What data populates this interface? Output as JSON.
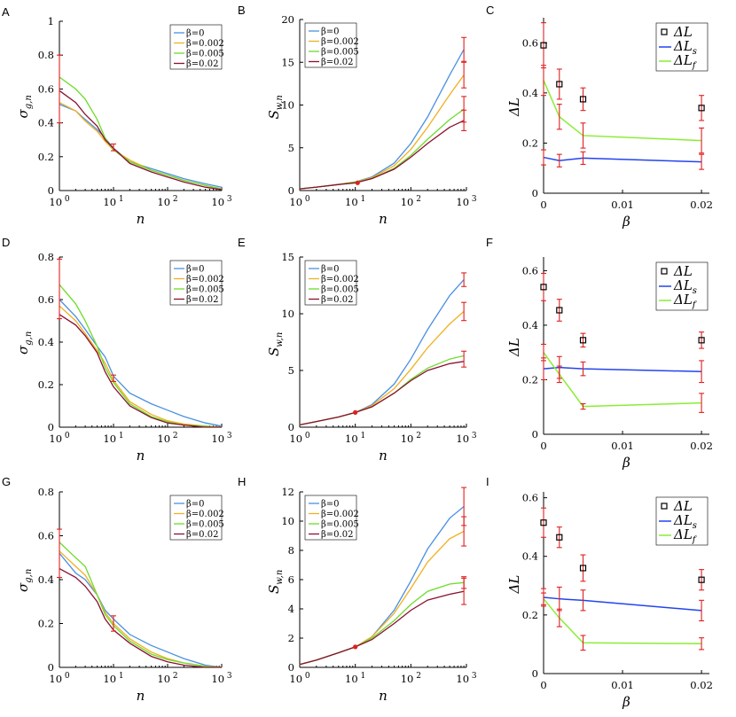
{
  "figure": {
    "legend_labels_sigma": [
      "β=0",
      "β=0.002",
      "β=0.005",
      "β=0.02"
    ],
    "legend_labels_dl": [
      "ΔL",
      "ΔLs",
      "ΔLf"
    ],
    "colors": {
      "b0": "#4a90e2",
      "b002": "#f0b020",
      "b005": "#6cdc2a",
      "b02": "#8b1030",
      "dLs": "#2244ee",
      "dLf": "#88ee33",
      "err": "#e02020"
    }
  },
  "chart_data": [
    {
      "panel": "A",
      "type": "line",
      "xscale": "log",
      "xlabel": "n",
      "ylabel": "σg,n",
      "xlim": [
        1,
        1000
      ],
      "ylim": [
        0,
        1
      ],
      "yticks": [
        "0",
        "0.2",
        "0.4",
        "0.6",
        "0.8",
        "1"
      ],
      "xticks": [
        "10⁰",
        "10¹",
        "10²",
        "10³"
      ],
      "x": [
        1,
        2,
        3,
        5,
        7,
        10,
        20,
        50,
        100,
        200,
        500,
        1000
      ],
      "series": [
        {
          "name": "β=0",
          "values": [
            0.51,
            0.47,
            0.42,
            0.36,
            0.31,
            0.25,
            0.17,
            0.13,
            0.1,
            0.07,
            0.04,
            0.02
          ]
        },
        {
          "name": "β=0.002",
          "values": [
            0.52,
            0.47,
            0.41,
            0.35,
            0.29,
            0.24,
            0.18,
            0.12,
            0.09,
            0.06,
            0.03,
            0.01
          ]
        },
        {
          "name": "β=0.005",
          "values": [
            0.67,
            0.6,
            0.54,
            0.42,
            0.31,
            0.24,
            0.17,
            0.12,
            0.09,
            0.06,
            0.03,
            0.01
          ]
        },
        {
          "name": "β=0.02",
          "values": [
            0.59,
            0.52,
            0.45,
            0.38,
            0.3,
            0.25,
            0.16,
            0.11,
            0.08,
            0.05,
            0.02,
            0.005
          ]
        }
      ],
      "errorbars": [
        {
          "x": 1,
          "y": 0.6,
          "err": 0.2
        },
        {
          "x": 10,
          "y": 0.255,
          "err": 0.02
        }
      ]
    },
    {
      "panel": "B",
      "type": "line",
      "xscale": "log",
      "xlabel": "n",
      "ylabel": "Sw,n",
      "xlim": [
        1,
        1000
      ],
      "ylim": [
        0,
        20
      ],
      "yticks": [
        "0",
        "5",
        "10",
        "15",
        "20"
      ],
      "xticks": [
        "10⁰",
        "10¹",
        "10²",
        "10³"
      ],
      "x": [
        1,
        2,
        5,
        10,
        20,
        50,
        100,
        200,
        500,
        900
      ],
      "series": [
        {
          "name": "β=0",
          "values": [
            0.2,
            0.4,
            0.7,
            1.0,
            1.6,
            3.2,
            5.5,
            8.6,
            13.5,
            16.5
          ]
        },
        {
          "name": "β=0.002",
          "values": [
            0.2,
            0.4,
            0.7,
            1.0,
            1.5,
            2.9,
            4.8,
            7.4,
            11.2,
            13.5
          ]
        },
        {
          "name": "β=0.005",
          "values": [
            0.2,
            0.4,
            0.7,
            1.0,
            1.4,
            2.6,
            4.1,
            6.0,
            8.3,
            9.5
          ]
        },
        {
          "name": "β=0.02",
          "values": [
            0.2,
            0.4,
            0.7,
            0.9,
            1.4,
            2.5,
            3.9,
            5.5,
            7.4,
            8.2
          ]
        }
      ],
      "errorbars": [
        {
          "x": 900,
          "y": 16.5,
          "err": 1.4
        },
        {
          "x": 900,
          "y": 13.5,
          "err": 1.5
        },
        {
          "x": 900,
          "y": 9.5,
          "err": 1.5
        },
        {
          "x": 900,
          "y": 8.2,
          "err": 1.2
        }
      ],
      "markers": [
        {
          "x": 11,
          "y": 0.9
        }
      ]
    },
    {
      "panel": "C",
      "type": "scatter+line",
      "xlabel": "β",
      "ylabel": "ΔL",
      "xlim": [
        0,
        0.021
      ],
      "ylim": [
        0,
        0.7
      ],
      "yticks": [
        "0",
        "0.2",
        "0.4",
        "0.6"
      ],
      "xticks": [
        "0",
        "0.01",
        "0.02"
      ],
      "x": [
        0,
        0.002,
        0.005,
        0.02
      ],
      "series": [
        {
          "name": "ΔL",
          "values": [
            0.59,
            0.435,
            0.375,
            0.34
          ],
          "err": [
            0.09,
            0.06,
            0.045,
            0.05
          ]
        },
        {
          "name": "ΔLs",
          "values": [
            0.143,
            0.13,
            0.14,
            0.125
          ],
          "err": [
            0.03,
            0.025,
            0.025,
            0.03
          ]
        },
        {
          "name": "ΔLf",
          "values": [
            0.45,
            0.305,
            0.23,
            0.21
          ],
          "err": [
            0.06,
            0.05,
            0.05,
            0.05
          ]
        }
      ]
    },
    {
      "panel": "D",
      "type": "line",
      "xscale": "log",
      "xlabel": "n",
      "ylabel": "σg,n",
      "xlim": [
        1,
        1000
      ],
      "ylim": [
        0,
        0.8
      ],
      "yticks": [
        "0",
        "0.2",
        "0.4",
        "0.6",
        "0.8"
      ],
      "xticks": [
        "10⁰",
        "10¹",
        "10²",
        "10³"
      ],
      "x": [
        1,
        2,
        3,
        5,
        7,
        10,
        20,
        50,
        100,
        200,
        500,
        1000
      ],
      "series": [
        {
          "name": "β=0",
          "values": [
            0.6,
            0.52,
            0.46,
            0.38,
            0.33,
            0.24,
            0.16,
            0.11,
            0.08,
            0.05,
            0.02,
            0.005
          ]
        },
        {
          "name": "β=0.002",
          "values": [
            0.57,
            0.5,
            0.44,
            0.36,
            0.3,
            0.22,
            0.12,
            0.06,
            0.03,
            0.015,
            0.005,
            0.0
          ]
        },
        {
          "name": "β=0.005",
          "values": [
            0.67,
            0.58,
            0.5,
            0.38,
            0.28,
            0.21,
            0.11,
            0.05,
            0.025,
            0.01,
            0.005,
            0.0
          ]
        },
        {
          "name": "β=0.02",
          "values": [
            0.53,
            0.48,
            0.43,
            0.35,
            0.26,
            0.19,
            0.1,
            0.045,
            0.02,
            0.01,
            0.0,
            0.0
          ]
        }
      ],
      "errorbars": [
        {
          "x": 1,
          "y": 0.65,
          "err": 0.14
        },
        {
          "x": 10,
          "y": 0.23,
          "err": 0.015
        }
      ]
    },
    {
      "panel": "E",
      "type": "line",
      "xscale": "log",
      "xlabel": "n",
      "ylabel": "Sw,n",
      "xlim": [
        1,
        1000
      ],
      "ylim": [
        0,
        15
      ],
      "yticks": [
        "0",
        "5",
        "10",
        "15"
      ],
      "xticks": [
        "10⁰",
        "10¹",
        "10²",
        "10³"
      ],
      "x": [
        1,
        2,
        5,
        10,
        20,
        50,
        100,
        200,
        500,
        900
      ],
      "series": [
        {
          "name": "β=0",
          "values": [
            0.2,
            0.5,
            0.9,
            1.3,
            2.0,
            3.8,
            6.0,
            8.6,
            11.6,
            13.0
          ]
        },
        {
          "name": "β=0.002",
          "values": [
            0.2,
            0.5,
            0.9,
            1.3,
            1.9,
            3.4,
            5.1,
            7.0,
            9.1,
            10.2
          ]
        },
        {
          "name": "β=0.005",
          "values": [
            0.2,
            0.5,
            0.9,
            1.3,
            1.8,
            3.0,
            4.2,
            5.2,
            6.0,
            6.3
          ]
        },
        {
          "name": "β=0.02",
          "values": [
            0.2,
            0.5,
            0.9,
            1.3,
            1.8,
            3.0,
            4.1,
            5.0,
            5.6,
            5.8
          ]
        }
      ],
      "errorbars": [
        {
          "x": 900,
          "y": 13.0,
          "err": 0.6
        },
        {
          "x": 900,
          "y": 10.2,
          "err": 0.8
        },
        {
          "x": 900,
          "y": 6.0,
          "err": 0.7
        }
      ],
      "markers": [
        {
          "x": 10,
          "y": 1.3
        }
      ]
    },
    {
      "panel": "F",
      "type": "scatter+line",
      "xlabel": "β",
      "ylabel": "ΔL",
      "xlim": [
        0,
        0.021
      ],
      "ylim": [
        0,
        0.65
      ],
      "yticks": [
        "0",
        "0.2",
        "0.4",
        "0.6"
      ],
      "xticks": [
        "0",
        "0.01",
        "0.02"
      ],
      "x": [
        0,
        0.002,
        0.005,
        0.02
      ],
      "series": [
        {
          "name": "ΔL",
          "values": [
            0.54,
            0.455,
            0.345,
            0.345
          ],
          "err": [
            0.05,
            0.04,
            0.025,
            0.03
          ]
        },
        {
          "name": "ΔLs",
          "values": [
            0.24,
            0.245,
            0.24,
            0.23
          ],
          "err": [
            0.04,
            0.04,
            0.025,
            0.04
          ]
        },
        {
          "name": "ΔLf",
          "values": [
            0.3,
            0.22,
            0.102,
            0.115
          ],
          "err": [
            0.03,
            0.03,
            0.01,
            0.035
          ]
        }
      ]
    },
    {
      "panel": "G",
      "type": "line",
      "xscale": "log",
      "xlabel": "n",
      "ylabel": "σg,n",
      "xlim": [
        1,
        1000
      ],
      "ylim": [
        0,
        0.8
      ],
      "yticks": [
        "0",
        "0.2",
        "0.4",
        "0.6",
        "0.8"
      ],
      "xticks": [
        "10⁰",
        "10¹",
        "10²",
        "10³"
      ],
      "x": [
        1,
        2,
        3,
        5,
        7,
        10,
        20,
        50,
        100,
        200,
        500,
        1000
      ],
      "series": [
        {
          "name": "β=0",
          "values": [
            0.52,
            0.43,
            0.4,
            0.33,
            0.26,
            0.22,
            0.15,
            0.1,
            0.07,
            0.04,
            0.01,
            0.0
          ]
        },
        {
          "name": "β=0.002",
          "values": [
            0.53,
            0.46,
            0.42,
            0.33,
            0.25,
            0.2,
            0.13,
            0.07,
            0.04,
            0.02,
            0.005,
            0.0
          ]
        },
        {
          "name": "β=0.005",
          "values": [
            0.57,
            0.5,
            0.46,
            0.33,
            0.24,
            0.19,
            0.12,
            0.06,
            0.035,
            0.02,
            0.005,
            0.0
          ]
        },
        {
          "name": "β=0.02",
          "values": [
            0.45,
            0.41,
            0.37,
            0.3,
            0.22,
            0.17,
            0.11,
            0.05,
            0.025,
            0.01,
            0.0,
            0.0
          ]
        }
      ],
      "errorbars": [
        {
          "x": 1,
          "y": 0.52,
          "err": 0.11
        },
        {
          "x": 10,
          "y": 0.2,
          "err": 0.035
        }
      ]
    },
    {
      "panel": "H",
      "type": "line",
      "xscale": "log",
      "xlabel": "n",
      "ylabel": "Sw,n",
      "xlim": [
        1,
        1000
      ],
      "ylim": [
        0,
        12
      ],
      "yticks": [
        "0",
        "2",
        "4",
        "6",
        "8",
        "10",
        "12"
      ],
      "xticks": [
        "10⁰",
        "10¹",
        "10²",
        "10³"
      ],
      "x": [
        1,
        2,
        5,
        10,
        20,
        50,
        100,
        200,
        500,
        900
      ],
      "series": [
        {
          "name": "β=0",
          "values": [
            0.2,
            0.5,
            1.0,
            1.4,
            2.1,
            3.9,
            5.9,
            8.1,
            10.2,
            11.0
          ]
        },
        {
          "name": "β=0.002",
          "values": [
            0.2,
            0.5,
            1.0,
            1.4,
            2.1,
            3.7,
            5.4,
            7.2,
            8.8,
            9.3
          ]
        },
        {
          "name": "β=0.005",
          "values": [
            0.2,
            0.5,
            1.0,
            1.4,
            2.0,
            3.2,
            4.3,
            5.2,
            5.7,
            5.8
          ]
        },
        {
          "name": "β=0.02",
          "values": [
            0.2,
            0.5,
            1.0,
            1.4,
            1.9,
            3.0,
            3.9,
            4.6,
            5.0,
            5.2
          ]
        }
      ],
      "errorbars": [
        {
          "x": 900,
          "y": 11.0,
          "err": 1.3
        },
        {
          "x": 900,
          "y": 9.3,
          "err": 1.0
        },
        {
          "x": 900,
          "y": 5.8,
          "err": 0.4
        },
        {
          "x": 900,
          "y": 5.2,
          "err": 0.9
        }
      ],
      "markers": [
        {
          "x": 10,
          "y": 1.4
        }
      ]
    },
    {
      "panel": "I",
      "type": "scatter+line",
      "xlabel": "β",
      "ylabel": "ΔL",
      "xlim": [
        0,
        0.021
      ],
      "ylim": [
        0,
        0.62
      ],
      "yticks": [
        "0",
        "0.2",
        "0.4",
        "0.6"
      ],
      "xticks": [
        "0",
        "0.01",
        "0.02"
      ],
      "x": [
        0,
        0.002,
        0.005,
        0.02
      ],
      "series": [
        {
          "name": "ΔL",
          "values": [
            0.515,
            0.465,
            0.36,
            0.32
          ],
          "err": [
            0.05,
            0.035,
            0.045,
            0.035
          ]
        },
        {
          "name": "ΔLs",
          "values": [
            0.26,
            0.255,
            0.25,
            0.215
          ],
          "err": [
            0.03,
            0.04,
            0.035,
            0.035
          ]
        },
        {
          "name": "ΔLf",
          "values": [
            0.255,
            0.19,
            0.105,
            0.102
          ],
          "err": [
            0.02,
            0.03,
            0.025,
            0.02
          ]
        }
      ]
    }
  ]
}
